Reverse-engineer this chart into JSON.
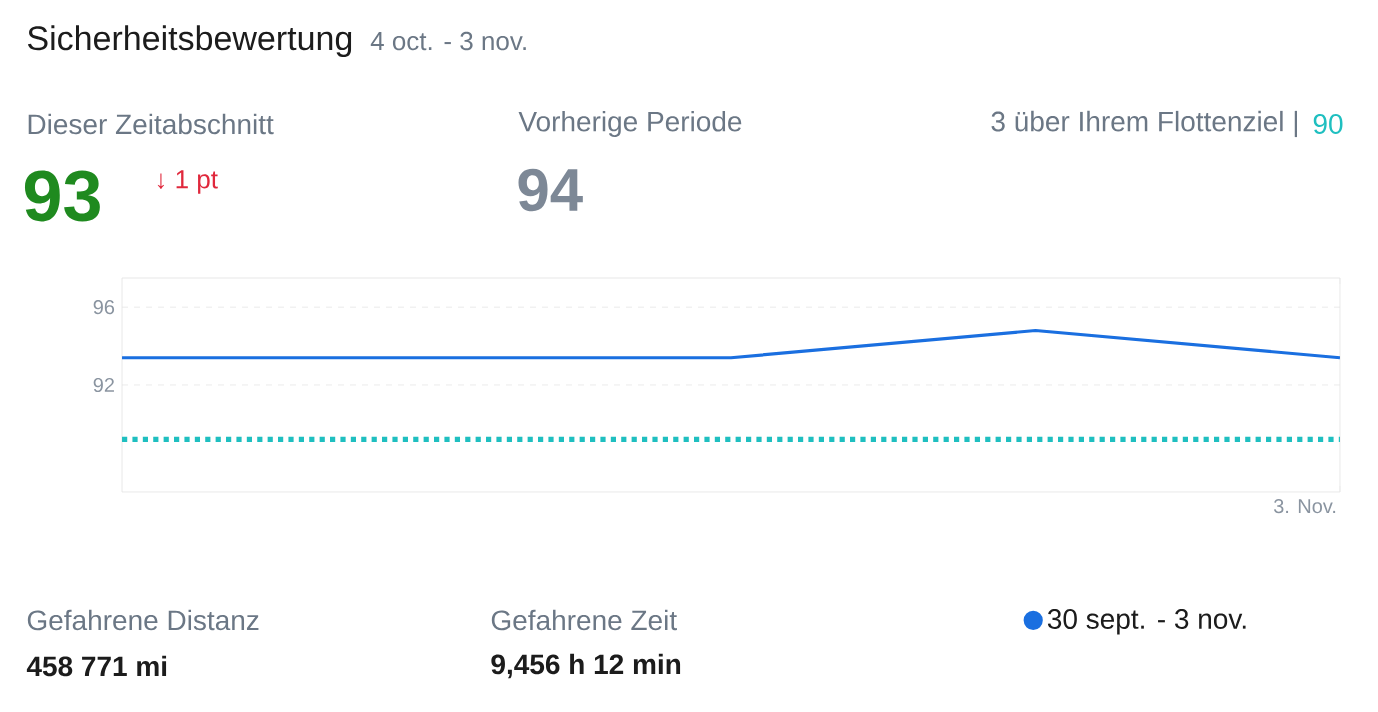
{
  "chart_data": {
    "type": "line",
    "title": "Sicherheitsbewertung",
    "subtitle": "4 oct. - 3 nov.",
    "annotations": [
      "Dieser Zeitabschnitt",
      "93",
      "↓ 1 pt",
      "Vorherige Periode",
      "94",
      "3 über Ihrem Flottenziel |",
      "90",
      "Gefahrene Distanz",
      "458 771 mi",
      "Gefahrene Zeit",
      "9,456 h 12 min"
    ],
    "categories": [
      null,
      null,
      null,
      null,
      "3. Nov."
    ],
    "series": [
      {
        "name": "30 sept. - 3 nov.",
        "color": "#1a6fe0",
        "values": [
          93.4,
          93.4,
          93.4,
          94.8,
          93.4
        ]
      }
    ],
    "ylim": [
      86.5,
      97.5
    ],
    "yticks": [
      92,
      96
    ],
    "ref_lines": [
      {
        "axis": "y",
        "value": 89.2,
        "color": "#1fbfc0",
        "line_style": "dotted"
      }
    ],
    "grid": "y",
    "legend": "bottom",
    "marker": "none",
    "line_style": "solid"
  }
}
